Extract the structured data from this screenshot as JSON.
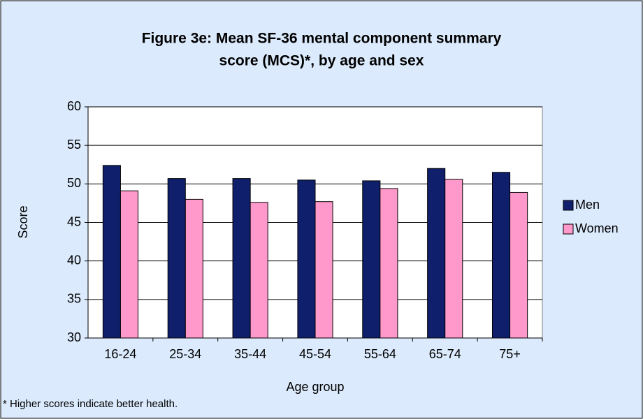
{
  "chart_data": {
    "type": "bar",
    "title": "Figure 3e: Mean SF-36 mental component summary",
    "subtitle": "score (MCS)*, by age and sex",
    "x_label": "Age group",
    "y_label": "Score",
    "annotation": "* Higher scores indicate better health.",
    "categories": [
      "16-24",
      "25-34",
      "35-44",
      "45-54",
      "55-64",
      "65-74",
      "75+"
    ],
    "series": [
      {
        "name": "Men",
        "color": "#0f1f6b",
        "values": [
          52.4,
          50.7,
          50.7,
          50.5,
          50.4,
          52.0,
          51.5
        ]
      },
      {
        "name": "Women",
        "color": "#ff99cc",
        "values": [
          49.1,
          48.0,
          47.6,
          47.7,
          49.4,
          50.6,
          48.9
        ]
      }
    ],
    "ylim": [
      30,
      60
    ],
    "yticks": [
      30,
      35,
      40,
      45,
      50,
      55,
      60
    ],
    "grid": true,
    "legend": "right"
  }
}
